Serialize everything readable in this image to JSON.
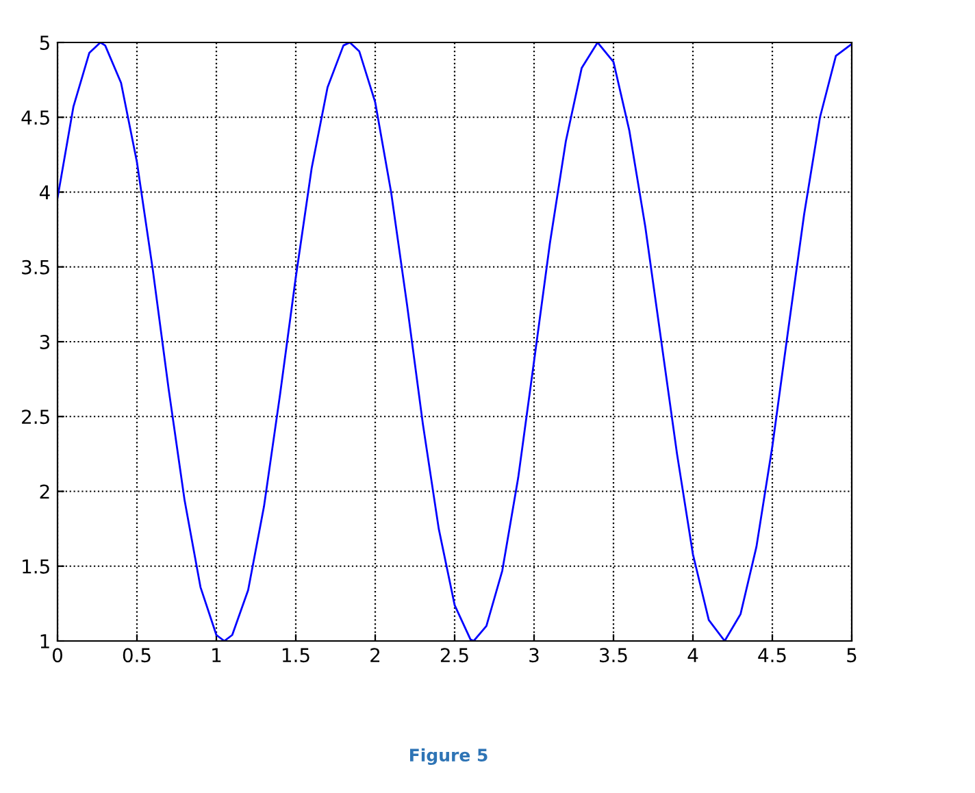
{
  "chart_data": {
    "type": "line",
    "x": [
      0,
      0.1,
      0.2,
      0.27,
      0.3,
      0.4,
      0.5,
      0.6,
      0.7,
      0.8,
      0.9,
      1.0,
      1.05,
      1.1,
      1.2,
      1.3,
      1.4,
      1.5,
      1.6,
      1.7,
      1.8,
      1.84,
      1.9,
      2.0,
      2.1,
      2.2,
      2.3,
      2.4,
      2.5,
      2.6,
      2.62,
      2.7,
      2.8,
      2.9,
      3.0,
      3.1,
      3.2,
      3.3,
      3.4,
      3.5,
      3.6,
      3.7,
      3.8,
      3.9,
      4.0,
      4.1,
      4.2,
      4.3,
      4.4,
      4.5,
      4.6,
      4.7,
      4.8,
      4.9,
      5.0
    ],
    "series": [
      {
        "color": "#0000ff",
        "values": [
          3.96,
          4.57,
          4.93,
          5.0,
          4.98,
          4.73,
          4.2,
          3.48,
          2.68,
          1.94,
          1.36,
          1.04,
          1.0,
          1.04,
          1.34,
          1.9,
          2.64,
          3.43,
          4.16,
          4.7,
          4.98,
          5.0,
          4.94,
          4.6,
          4.0,
          3.25,
          2.45,
          1.75,
          1.24,
          1.01,
          1.0,
          1.1,
          1.47,
          2.09,
          2.87,
          3.66,
          4.34,
          4.83,
          5.0,
          4.87,
          4.41,
          3.77,
          3.01,
          2.25,
          1.58,
          1.14,
          1.0,
          1.18,
          1.63,
          2.3,
          3.08,
          3.85,
          4.5,
          4.91,
          4.99
        ]
      }
    ],
    "xlim": [
      0,
      5
    ],
    "xticks": [
      0,
      0.5,
      1,
      1.5,
      2,
      2.5,
      3,
      3.5,
      4,
      4.5,
      5
    ],
    "ylim": [
      1,
      5
    ],
    "yticks": [
      1,
      1.5,
      2,
      2.5,
      3,
      3.5,
      4,
      4.5,
      5
    ],
    "grid": true,
    "line_style": "solid",
    "marker": "none",
    "annotations": [
      "Figure 5"
    ]
  }
}
